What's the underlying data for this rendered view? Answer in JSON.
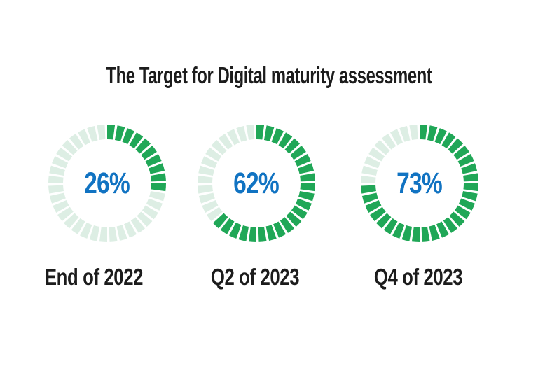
{
  "page": {
    "background": "#ffffff"
  },
  "chart_data": {
    "type": "pie",
    "variant": "segmented_donut_gauge_row",
    "title": "The Target for Digital maturity assessment",
    "gauges": [
      {
        "label": "End of 2022",
        "value": 26,
        "value_display": "26%"
      },
      {
        "label": "Q2 of 2023",
        "value": 62,
        "value_display": "62%"
      },
      {
        "label": "Q4 of 2023",
        "value": 73,
        "value_display": "73%"
      }
    ],
    "segments_per_ring": 36,
    "start_angle_deg": 0,
    "direction": "clockwise",
    "value_range": [
      0,
      100
    ],
    "legend": "none",
    "grid": "off",
    "colors": {
      "filled_segment": "#20a757",
      "unfilled_segment": "#ddeee4",
      "value_text": "#1173c2",
      "label_text": "#1c1c1c",
      "title_text": "#1c1c1c"
    }
  }
}
